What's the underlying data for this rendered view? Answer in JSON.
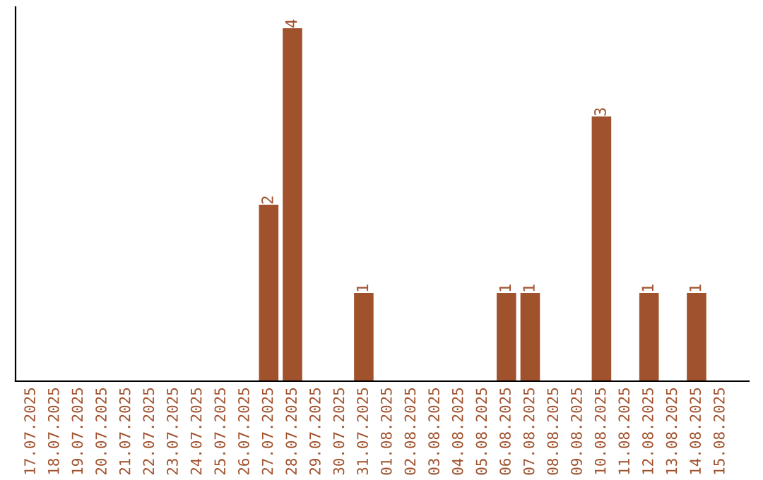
{
  "chart_data": {
    "type": "bar",
    "categories": [
      "17.07.2025",
      "18.07.2025",
      "19.07.2025",
      "20.07.2025",
      "21.07.2025",
      "22.07.2025",
      "23.07.2025",
      "24.07.2025",
      "25.07.2025",
      "26.07.2025",
      "27.07.2025",
      "28.07.2025",
      "29.07.2025",
      "30.07.2025",
      "31.07.2025",
      "01.08.2025",
      "02.08.2025",
      "03.08.2025",
      "04.08.2025",
      "05.08.2025",
      "06.08.2025",
      "07.08.2025",
      "08.08.2025",
      "09.08.2025",
      "10.08.2025",
      "11.08.2025",
      "12.08.2025",
      "13.08.2025",
      "14.08.2025",
      "15.08.2025"
    ],
    "values": [
      0,
      0,
      0,
      0,
      0,
      0,
      0,
      0,
      0,
      0,
      2,
      4,
      0,
      0,
      1,
      0,
      0,
      0,
      0,
      0,
      1,
      1,
      0,
      0,
      3,
      0,
      1,
      0,
      1,
      0
    ],
    "value_labels": [
      null,
      null,
      null,
      null,
      null,
      null,
      null,
      null,
      null,
      null,
      "2",
      "4",
      null,
      null,
      "1",
      null,
      null,
      null,
      null,
      null,
      "1",
      "1",
      null,
      null,
      "3",
      null,
      "1",
      null,
      "1",
      null
    ],
    "color": "#a0522d",
    "tick_labels": "x",
    "grid": false,
    "legend": false
  }
}
